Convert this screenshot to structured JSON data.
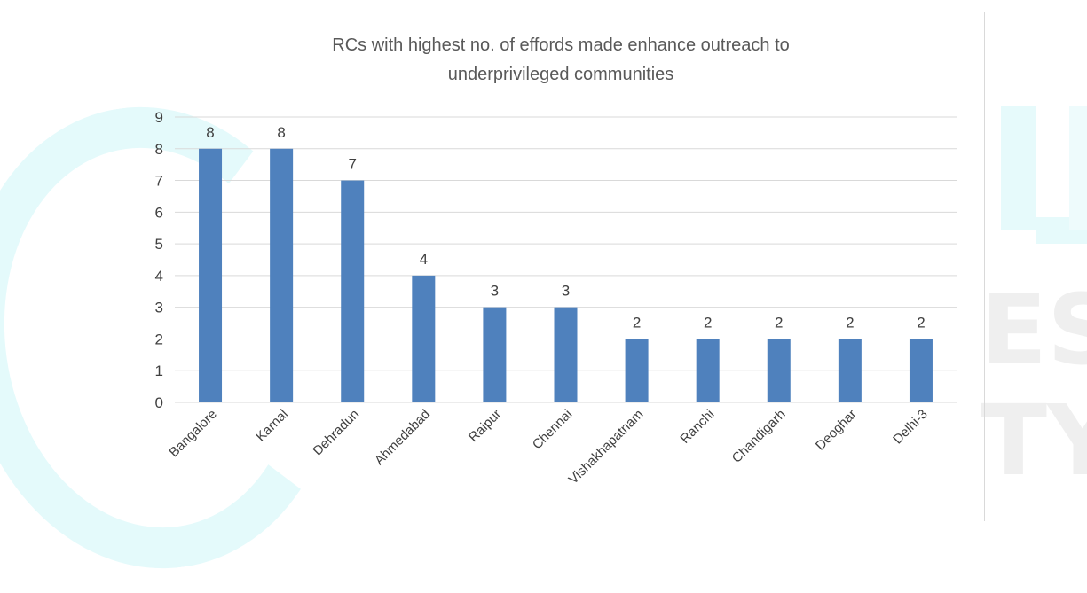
{
  "watermark": {
    "text": "ES TY"
  },
  "chart_data": {
    "type": "bar",
    "title_lines": [
      "RCs with highest no. of effords made enhance outreach to",
      "underprivileged communities"
    ],
    "categories": [
      "Bangalore",
      "Karnal",
      "Dehradun",
      "Ahmedabad",
      "Raipur",
      "Chennai",
      "Vishakhapatnam",
      "Ranchi",
      "Chandigarh",
      "Deoghar",
      "Delhi-3"
    ],
    "values": [
      8,
      8,
      7,
      4,
      3,
      3,
      2,
      2,
      2,
      2,
      2
    ],
    "ylim": [
      0,
      9
    ],
    "yticks": [
      0,
      1,
      2,
      3,
      4,
      5,
      6,
      7,
      8,
      9
    ],
    "xlabel": "",
    "ylabel": "",
    "grid": true,
    "legend": "none",
    "bar_color": "#4f81bd",
    "gridline_color": "#d9d9d9"
  }
}
